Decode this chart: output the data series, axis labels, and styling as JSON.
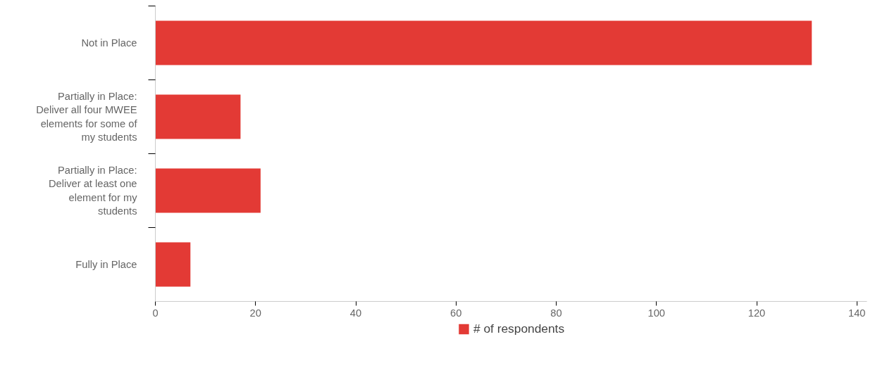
{
  "chart_data": {
    "type": "bar",
    "orientation": "horizontal",
    "categories": [
      "Not in Place",
      "Partially in Place: Deliver all four MWEE elements for some of my students",
      "Partially in Place: Deliver at least one element for my students",
      "Fully in Place"
    ],
    "series": [
      {
        "name": "# of respondents",
        "color": "#e33a35",
        "values": [
          131,
          17,
          21,
          7
        ]
      }
    ],
    "xlim": [
      0,
      142
    ],
    "xticks": [
      0,
      20,
      40,
      60,
      80,
      100,
      120,
      140
    ],
    "grid": false,
    "legend": "bottom"
  }
}
